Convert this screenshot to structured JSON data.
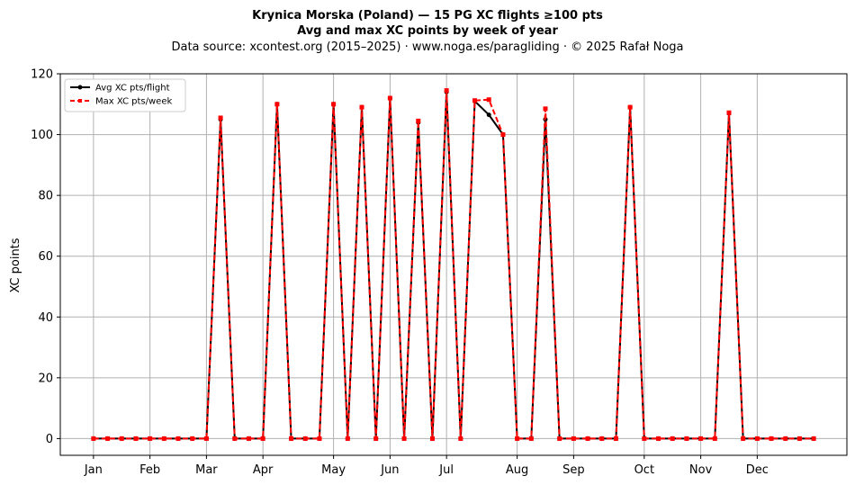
{
  "chart_data": {
    "type": "line",
    "title": "Krynica Morska (Poland)  —  15 PG XC flights ≥100 pts",
    "subtitle": "Avg and max XC points by week of year",
    "source": "Data source: xcontest.org (2015–2025)  ·  www.noga.es/paragliding  ·  © 2025 Rafał Noga",
    "xlabel": "",
    "ylabel": "XC points",
    "ylim": [
      0,
      120
    ],
    "yticks": [
      0,
      20,
      40,
      60,
      80,
      100,
      120
    ],
    "x_month_ticks": [
      {
        "label": "Jan",
        "week": 1
      },
      {
        "label": "Feb",
        "week": 5
      },
      {
        "label": "Mar",
        "week": 9
      },
      {
        "label": "Apr",
        "week": 13
      },
      {
        "label": "May",
        "week": 18
      },
      {
        "label": "Jun",
        "week": 22
      },
      {
        "label": "Jul",
        "week": 26
      },
      {
        "label": "Aug",
        "week": 31
      },
      {
        "label": "Sep",
        "week": 35
      },
      {
        "label": "Oct",
        "week": 40
      },
      {
        "label": "Nov",
        "week": 44
      },
      {
        "label": "Dec",
        "week": 48
      }
    ],
    "grid": true,
    "legend_position": "top-left",
    "series": [
      {
        "name": "Avg XC pts/flight",
        "color": "#000000",
        "style": "solid",
        "marker": "circle",
        "points": [
          [
            1,
            0
          ],
          [
            2,
            0
          ],
          [
            3,
            0
          ],
          [
            4,
            0
          ],
          [
            5,
            0
          ],
          [
            6,
            0
          ],
          [
            7,
            0
          ],
          [
            8,
            0
          ],
          [
            9,
            0
          ],
          [
            10,
            105
          ],
          [
            11,
            0
          ],
          [
            12,
            0
          ],
          [
            13,
            0
          ],
          [
            14,
            110
          ],
          [
            15,
            0
          ],
          [
            16,
            0
          ],
          [
            17,
            0
          ],
          [
            18,
            110
          ],
          [
            19,
            0
          ],
          [
            20,
            109
          ],
          [
            21,
            0
          ],
          [
            22,
            112
          ],
          [
            23,
            0
          ],
          [
            24,
            104
          ],
          [
            25,
            0
          ],
          [
            26,
            114
          ],
          [
            27,
            0
          ],
          [
            28,
            111
          ],
          [
            29,
            106.5
          ],
          [
            30,
            100
          ],
          [
            31,
            0
          ],
          [
            32,
            0
          ],
          [
            33,
            105
          ],
          [
            34,
            0
          ],
          [
            35,
            0
          ],
          [
            36,
            0
          ],
          [
            37,
            0
          ],
          [
            38,
            0
          ],
          [
            39,
            109
          ],
          [
            40,
            0
          ],
          [
            41,
            0
          ],
          [
            42,
            0
          ],
          [
            43,
            0
          ],
          [
            44,
            0
          ],
          [
            45,
            0
          ],
          [
            46,
            107
          ],
          [
            47,
            0
          ],
          [
            48,
            0
          ],
          [
            49,
            0
          ],
          [
            50,
            0
          ],
          [
            51,
            0
          ],
          [
            52,
            0
          ]
        ]
      },
      {
        "name": "Max XC pts/week",
        "color": "#ff0000",
        "style": "dashed",
        "marker": "square",
        "points": [
          [
            1,
            0
          ],
          [
            2,
            0
          ],
          [
            3,
            0
          ],
          [
            4,
            0
          ],
          [
            5,
            0
          ],
          [
            6,
            0
          ],
          [
            7,
            0
          ],
          [
            8,
            0
          ],
          [
            9,
            0
          ],
          [
            10,
            105.5
          ],
          [
            11,
            0
          ],
          [
            12,
            0
          ],
          [
            13,
            0
          ],
          [
            14,
            110
          ],
          [
            15,
            0
          ],
          [
            16,
            0
          ],
          [
            17,
            0
          ],
          [
            18,
            110
          ],
          [
            19,
            0
          ],
          [
            20,
            109
          ],
          [
            21,
            0
          ],
          [
            22,
            112
          ],
          [
            23,
            0
          ],
          [
            24,
            104.5
          ],
          [
            25,
            0
          ],
          [
            26,
            114.5
          ],
          [
            27,
            0
          ],
          [
            28,
            111.2
          ],
          [
            29,
            111.5
          ],
          [
            30,
            100
          ],
          [
            31,
            0
          ],
          [
            32,
            0
          ],
          [
            33,
            108.5
          ],
          [
            34,
            0
          ],
          [
            35,
            0
          ],
          [
            36,
            0
          ],
          [
            37,
            0
          ],
          [
            38,
            0
          ],
          [
            39,
            109
          ],
          [
            40,
            0
          ],
          [
            41,
            0
          ],
          [
            42,
            0
          ],
          [
            43,
            0
          ],
          [
            44,
            0
          ],
          [
            45,
            0
          ],
          [
            46,
            107.2
          ],
          [
            47,
            0
          ],
          [
            48,
            0
          ],
          [
            49,
            0
          ],
          [
            50,
            0
          ],
          [
            51,
            0
          ],
          [
            52,
            0
          ]
        ]
      }
    ]
  }
}
